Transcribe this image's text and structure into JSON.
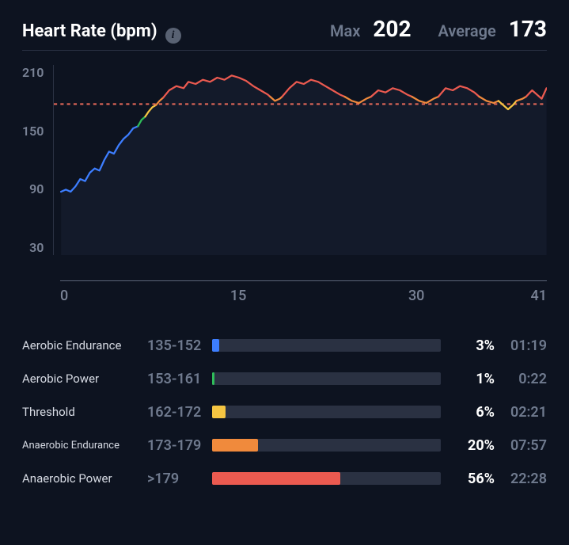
{
  "header": {
    "title": "Heart Rate (bpm)",
    "info_icon": "i",
    "max_label": "Max",
    "max_value": "202",
    "avg_label": "Average",
    "avg_value": "173"
  },
  "chart": {
    "type": "line",
    "background_color": "#0d1320",
    "area_fill": "#1a2133",
    "area_fill_opacity": 0.55,
    "grid_color": "#2b3244",
    "axis_line_color": "#5c6578",
    "tick_color": "#7a8396",
    "tick_fontsize": 16,
    "ylim": [
      30,
      210
    ],
    "y_ticks": [
      210,
      150,
      90,
      30
    ],
    "xlim": [
      0,
      41
    ],
    "x_ticks": [
      0,
      15,
      30,
      41
    ],
    "x_tick_positions_pct": [
      0,
      36.6,
      73.2,
      100
    ],
    "average_line": {
      "value": 173,
      "color": "#e86a5a",
      "dash": "4 4",
      "width": 2
    },
    "line_width": 2.2,
    "zone_thresholds": {
      "aerobic_endurance_start": 135,
      "aerobic_power_start": 153,
      "threshold_start": 162,
      "anaerobic_endurance_start": 173,
      "anaerobic_power_start": 180
    },
    "segments": [
      {
        "color": "#3d7eff",
        "points": [
          [
            0.6,
            90
          ],
          [
            1.0,
            92
          ],
          [
            1.4,
            90
          ],
          [
            1.8,
            95
          ],
          [
            2.2,
            102
          ],
          [
            2.6,
            100
          ],
          [
            3.0,
            108
          ],
          [
            3.4,
            112
          ],
          [
            3.8,
            110
          ],
          [
            4.2,
            120
          ],
          [
            4.6,
            128
          ],
          [
            5.0,
            126
          ],
          [
            5.4,
            134
          ],
          [
            5.8,
            140
          ],
          [
            6.2,
            144
          ],
          [
            6.6,
            150
          ],
          [
            7.0,
            152
          ]
        ]
      },
      {
        "color": "#2fbd5a",
        "points": [
          [
            7.0,
            152
          ],
          [
            7.3,
            158
          ],
          [
            7.6,
            161
          ]
        ]
      },
      {
        "color": "#f5c542",
        "points": [
          [
            7.6,
            161
          ],
          [
            7.9,
            166
          ],
          [
            8.2,
            170
          ],
          [
            8.5,
            172
          ]
        ]
      },
      {
        "color": "#f08a3c",
        "points": [
          [
            8.5,
            172
          ],
          [
            8.8,
            176
          ],
          [
            9.1,
            179
          ]
        ]
      },
      {
        "color": "#eb5a50",
        "points": [
          [
            9.1,
            179
          ],
          [
            9.6,
            186
          ],
          [
            10.2,
            190
          ],
          [
            10.8,
            188
          ],
          [
            11.2,
            194
          ],
          [
            11.8,
            192
          ],
          [
            12.4,
            196
          ],
          [
            13.0,
            194
          ],
          [
            13.6,
            198
          ],
          [
            14.2,
            196
          ],
          [
            14.8,
            200
          ],
          [
            15.4,
            198
          ],
          [
            16.0,
            195
          ],
          [
            16.6,
            190
          ],
          [
            17.2,
            186
          ],
          [
            17.8,
            182
          ],
          [
            18.0,
            180
          ]
        ]
      },
      {
        "color": "#f08a3c",
        "points": [
          [
            18.0,
            180
          ],
          [
            18.4,
            176
          ],
          [
            18.8,
            178
          ],
          [
            19.0,
            180
          ]
        ]
      },
      {
        "color": "#eb5a50",
        "points": [
          [
            19.0,
            180
          ],
          [
            19.6,
            188
          ],
          [
            20.2,
            194
          ],
          [
            20.8,
            192
          ],
          [
            21.4,
            196
          ],
          [
            22.0,
            194
          ],
          [
            22.6,
            190
          ],
          [
            23.2,
            186
          ],
          [
            23.8,
            182
          ],
          [
            24.2,
            180
          ]
        ]
      },
      {
        "color": "#f08a3c",
        "points": [
          [
            24.2,
            180
          ],
          [
            24.8,
            176
          ],
          [
            25.4,
            174
          ],
          [
            26.0,
            178
          ],
          [
            26.4,
            180
          ]
        ]
      },
      {
        "color": "#eb5a50",
        "points": [
          [
            26.4,
            180
          ],
          [
            27.0,
            186
          ],
          [
            27.6,
            184
          ],
          [
            28.2,
            188
          ],
          [
            28.8,
            186
          ],
          [
            29.4,
            182
          ],
          [
            29.8,
            180
          ]
        ]
      },
      {
        "color": "#f08a3c",
        "points": [
          [
            29.8,
            180
          ],
          [
            30.4,
            176
          ],
          [
            31.0,
            174
          ],
          [
            31.6,
            178
          ],
          [
            32.0,
            180
          ]
        ]
      },
      {
        "color": "#eb5a50",
        "points": [
          [
            32.0,
            180
          ],
          [
            32.6,
            188
          ],
          [
            33.2,
            186
          ],
          [
            33.8,
            190
          ],
          [
            34.4,
            188
          ],
          [
            35.0,
            184
          ],
          [
            35.4,
            180
          ]
        ]
      },
      {
        "color": "#f08a3c",
        "points": [
          [
            35.4,
            180
          ],
          [
            36.0,
            176
          ],
          [
            36.6,
            174
          ],
          [
            37.0,
            176
          ]
        ]
      },
      {
        "color": "#f5c542",
        "points": [
          [
            37.0,
            176
          ],
          [
            37.4,
            172
          ],
          [
            37.8,
            168
          ],
          [
            38.2,
            172
          ],
          [
            38.5,
            176
          ]
        ]
      },
      {
        "color": "#f08a3c",
        "points": [
          [
            38.5,
            176
          ],
          [
            39.0,
            178
          ],
          [
            39.3,
            180
          ]
        ]
      },
      {
        "color": "#eb5a50",
        "points": [
          [
            39.3,
            180
          ],
          [
            39.8,
            186
          ],
          [
            40.2,
            182
          ],
          [
            40.6,
            178
          ],
          [
            41.0,
            188
          ]
        ]
      }
    ]
  },
  "zones": [
    {
      "name": "Aerobic Endurance",
      "name_fontsize": 15,
      "range": "135-152",
      "pct": 3,
      "pct_label": "3%",
      "time": "01:19",
      "color": "#3d7eff"
    },
    {
      "name": "Aerobic Power",
      "name_fontsize": 15,
      "range": "153-161",
      "pct": 1,
      "pct_label": "1%",
      "time": "0:22",
      "color": "#2fbd5a"
    },
    {
      "name": "Threshold",
      "name_fontsize": 15,
      "range": "162-172",
      "pct": 6,
      "pct_label": "6%",
      "time": "02:21",
      "color": "#f5c542"
    },
    {
      "name": "Anaerobic Endurance",
      "name_fontsize": 13,
      "range": "173-179",
      "pct": 20,
      "pct_label": "20%",
      "time": "07:57",
      "color": "#f08a3c"
    },
    {
      "name": "Anaerobic Power",
      "name_fontsize": 15,
      "range": ">179",
      "pct": 56,
      "pct_label": "56%",
      "time": "22:28",
      "color": "#eb5a50"
    }
  ]
}
